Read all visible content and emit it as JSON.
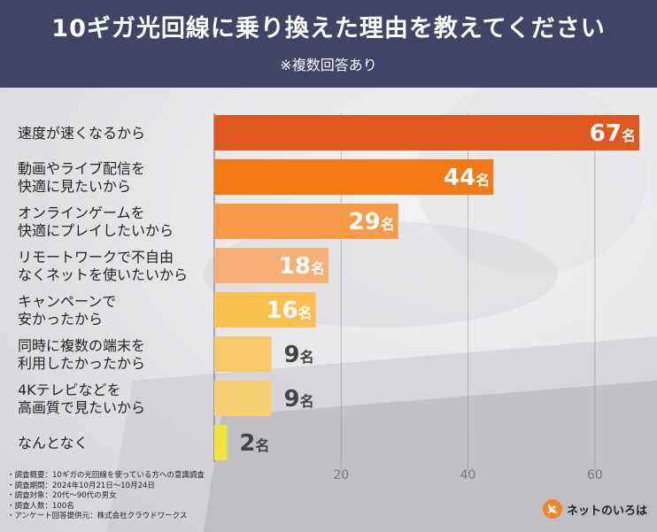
{
  "header": {
    "title": "10ギガ光回線に乗り換えた理由を教えてください",
    "subtitle": "※複数回答あり"
  },
  "chart_data": {
    "type": "bar",
    "orientation": "horizontal",
    "title": "10ギガ光回線に乗り換えた理由を教えてください",
    "subtitle": "※複数回答あり",
    "categories": [
      "速度が速くなるから",
      "動画やライブ配信を\n快適に見たいから",
      "オンラインゲームを\n快適にプレイしたいから",
      "リモートワークで不自由\nなくネットを使いたいから",
      "キャンペーンで\n安かったから",
      "同時に複数の端末を\n利用したかったから",
      "4Kテレビなどを\n高画質で見たいから",
      "なんとなく"
    ],
    "values": [
      67,
      44,
      29,
      18,
      16,
      9,
      9,
      2
    ],
    "unit": "名",
    "xlim": [
      0,
      67
    ],
    "x_ticks": [
      20,
      40,
      60
    ],
    "grid": true,
    "legend": "none",
    "bar_colors": [
      "#e1581e",
      "#f37a15",
      "#f79b48",
      "#f8ad75",
      "#fbc04f",
      "#f8c968",
      "#f9cf74",
      "#f1e53b"
    ]
  },
  "footnotes": [
    "・調査概要：10ギガの光回線を使っている方への意識調査",
    "・調査期間：2024年10月21日〜10月24日",
    "・調査対象：20代〜90代の男女",
    "・調査人数：100名",
    "・アンケート回答提供元：株式会社クラウドワークス"
  ],
  "logo": {
    "text": "ネットのいろは",
    "icon": "satellite-dish-icon"
  },
  "colors": {
    "header_bg": "#414565",
    "axis": "#888888",
    "value_text": "#ffffff",
    "small_value_text": "#444444"
  }
}
